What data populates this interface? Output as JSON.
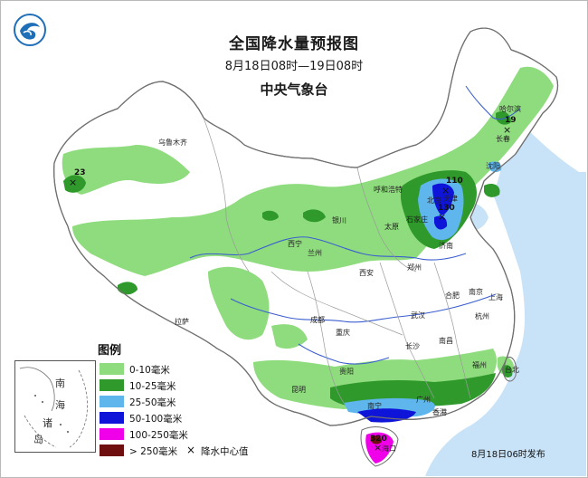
{
  "title": "全国降水量预报图",
  "period": "8月18日08时—19日08时",
  "agency": "中央气象台",
  "issued": "8月18日06时发布",
  "legend": {
    "title": "图例",
    "items": [
      {
        "label": "0-10毫米",
        "color": "#8fdc7e"
      },
      {
        "label": "10-25毫米",
        "color": "#2f9a2b"
      },
      {
        "label": "25-50毫米",
        "color": "#5eb6ec"
      },
      {
        "label": "50-100毫米",
        "color": "#0e14d8"
      },
      {
        "label": "100-250毫米",
        "color": "#f000e8"
      },
      {
        "label": "> 250毫米",
        "color": "#6e0e0e"
      }
    ],
    "center_label": "降水中心值",
    "center_symbol": "×"
  },
  "inset": {
    "labels": [
      "南",
      "海",
      "诸",
      "岛"
    ]
  },
  "cities": [
    "乌鲁木齐",
    "哈尔滨",
    "长春",
    "沈阳",
    "呼和浩特",
    "北京",
    "天津",
    "石家庄",
    "太原",
    "济南",
    "银川",
    "西宁",
    "兰州",
    "西安",
    "郑州",
    "合肥",
    "南京",
    "上海",
    "杭州",
    "武汉",
    "成都",
    "重庆",
    "长沙",
    "南昌",
    "贵阳",
    "昆明",
    "南宁",
    "广州",
    "香港",
    "福州",
    "台北",
    "拉萨",
    "海口"
  ],
  "center_values": [
    "23",
    "19",
    "110",
    "130",
    "320"
  ]
}
